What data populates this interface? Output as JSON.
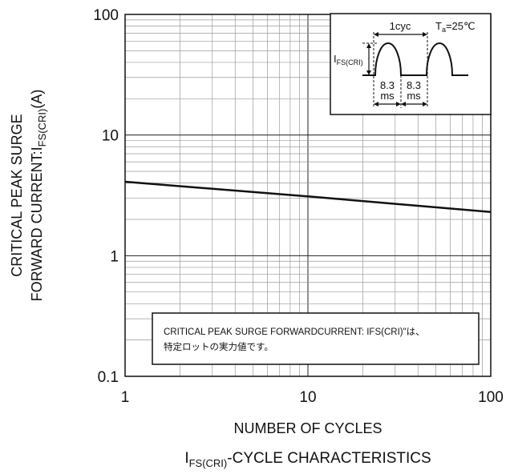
{
  "chart_data": {
    "type": "line",
    "x_scale": "log",
    "y_scale": "log",
    "xlim": [
      1,
      100
    ],
    "ylim": [
      0.1,
      100
    ],
    "x_ticks": [
      "1",
      "10",
      "100"
    ],
    "y_ticks": [
      "100",
      "10",
      "1",
      "0.1"
    ],
    "xlabel": "NUMBER OF CYCLES",
    "ylabel_line1": "CRITICAL PEAK SURGE",
    "ylabel_line2_main": "FORWARD CURRENT:I",
    "ylabel_line2_sub": "FS(CRI)",
    "ylabel_line2_unit": "(A)",
    "caption_main": "I",
    "caption_sub": "FS(CRI)",
    "caption_rest": "-CYCLE  CHARACTERISTICS",
    "grid": true,
    "series": [
      {
        "x": [
          1,
          10,
          100
        ],
        "y": [
          4.1,
          3.1,
          2.3
        ]
      }
    ],
    "inset": {
      "cycle_label": "1cyc",
      "temp_label_main": "T",
      "temp_label_sub": "a",
      "temp_label_rest": "=25℃",
      "current_label_main": "I",
      "current_label_sub": "FS(CRI)",
      "interval1_value": "8.3",
      "interval1_unit": "ms",
      "interval2_value": "8.3",
      "interval2_unit": "ms"
    },
    "note": {
      "line1": "CRITICAL PEAK SURGE FORWARDCURRENT: IFS(CRI)\"は、",
      "line2": "特定ロットの実力値です。"
    }
  }
}
